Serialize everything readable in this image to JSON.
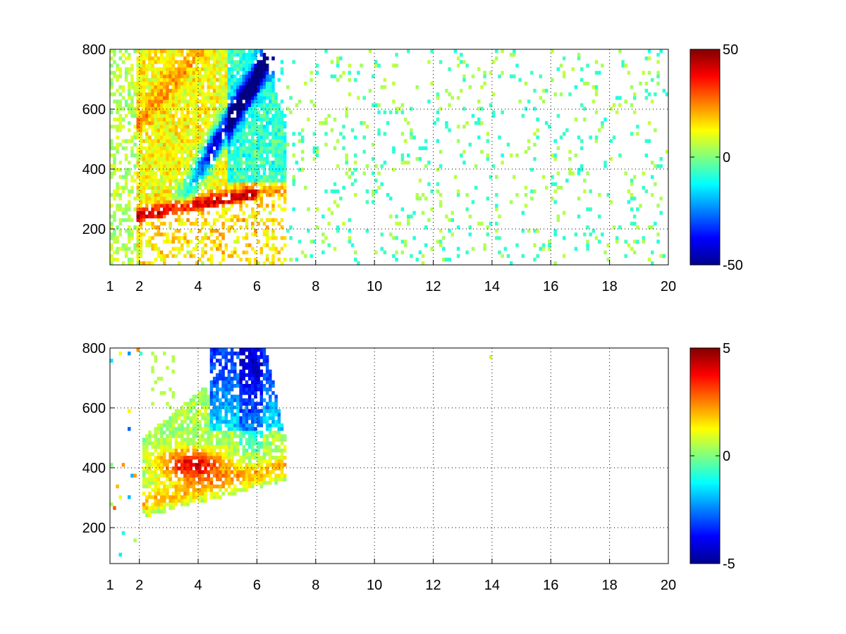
{
  "chart_data": [
    {
      "type": "heatmap",
      "title": "",
      "xlabel": "",
      "ylabel": "",
      "xlim": [
        1,
        20
      ],
      "ylim": [
        80,
        800
      ],
      "x_ticks": [
        "1",
        "2",
        "4",
        "6",
        "8",
        "10",
        "12",
        "14",
        "16",
        "18",
        "20"
      ],
      "x_tick_values": [
        1,
        2,
        4,
        6,
        8,
        10,
        12,
        14,
        16,
        18,
        20
      ],
      "y_ticks": [
        "200",
        "400",
        "600",
        "800"
      ],
      "y_tick_values": [
        200,
        400,
        600,
        800
      ],
      "grid": true,
      "grid_style": "dotted",
      "colormap": "jet",
      "colorbar": {
        "min": -50,
        "max": 50,
        "ticks": [
          "50",
          "0",
          "-50"
        ],
        "tick_values": [
          50,
          0,
          -50
        ],
        "position": "right"
      },
      "features": [
        {
          "x": [
            2.2,
            6.2
          ],
          "y": [
            250,
            330
          ],
          "value": 40,
          "note": "lower ridge"
        },
        {
          "x": [
            3.5,
            6.0
          ],
          "y": [
            300,
            800
          ],
          "value": -40,
          "note": "upper blue band"
        },
        {
          "x": [
            2.0,
            6.8
          ],
          "y": [
            200,
            800
          ],
          "value": 15,
          "note": "broad yellow region"
        }
      ],
      "scattered_values": {
        "x": [
          7,
          20
        ],
        "y": [
          80,
          800
        ],
        "typical_value": 0
      }
    },
    {
      "type": "heatmap",
      "title": "",
      "xlabel": "",
      "ylabel": "",
      "xlim": [
        1,
        20
      ],
      "ylim": [
        80,
        800
      ],
      "x_ticks": [
        "1",
        "2",
        "4",
        "6",
        "8",
        "10",
        "12",
        "14",
        "16",
        "18",
        "20"
      ],
      "x_tick_values": [
        1,
        2,
        4,
        6,
        8,
        10,
        12,
        14,
        16,
        18,
        20
      ],
      "y_ticks": [
        "200",
        "400",
        "600",
        "800"
      ],
      "y_tick_values": [
        200,
        400,
        600,
        800
      ],
      "grid": true,
      "grid_style": "dotted",
      "colormap": "jet",
      "colorbar": {
        "min": -5,
        "max": 5,
        "ticks": [
          "5",
          "0",
          "-5"
        ],
        "tick_values": [
          5,
          0,
          -5
        ],
        "position": "right"
      },
      "features": [
        {
          "x": [
            2.7,
            5.5
          ],
          "y": [
            340,
            480
          ],
          "value": 4,
          "note": "red cluster"
        },
        {
          "x": [
            4.5,
            6.2
          ],
          "y": [
            550,
            800
          ],
          "value": -3,
          "note": "blue-cyan top"
        },
        {
          "x": [
            2.2,
            7.0
          ],
          "y": [
            240,
            500
          ],
          "value": 0.5,
          "note": "green band"
        }
      ]
    }
  ]
}
